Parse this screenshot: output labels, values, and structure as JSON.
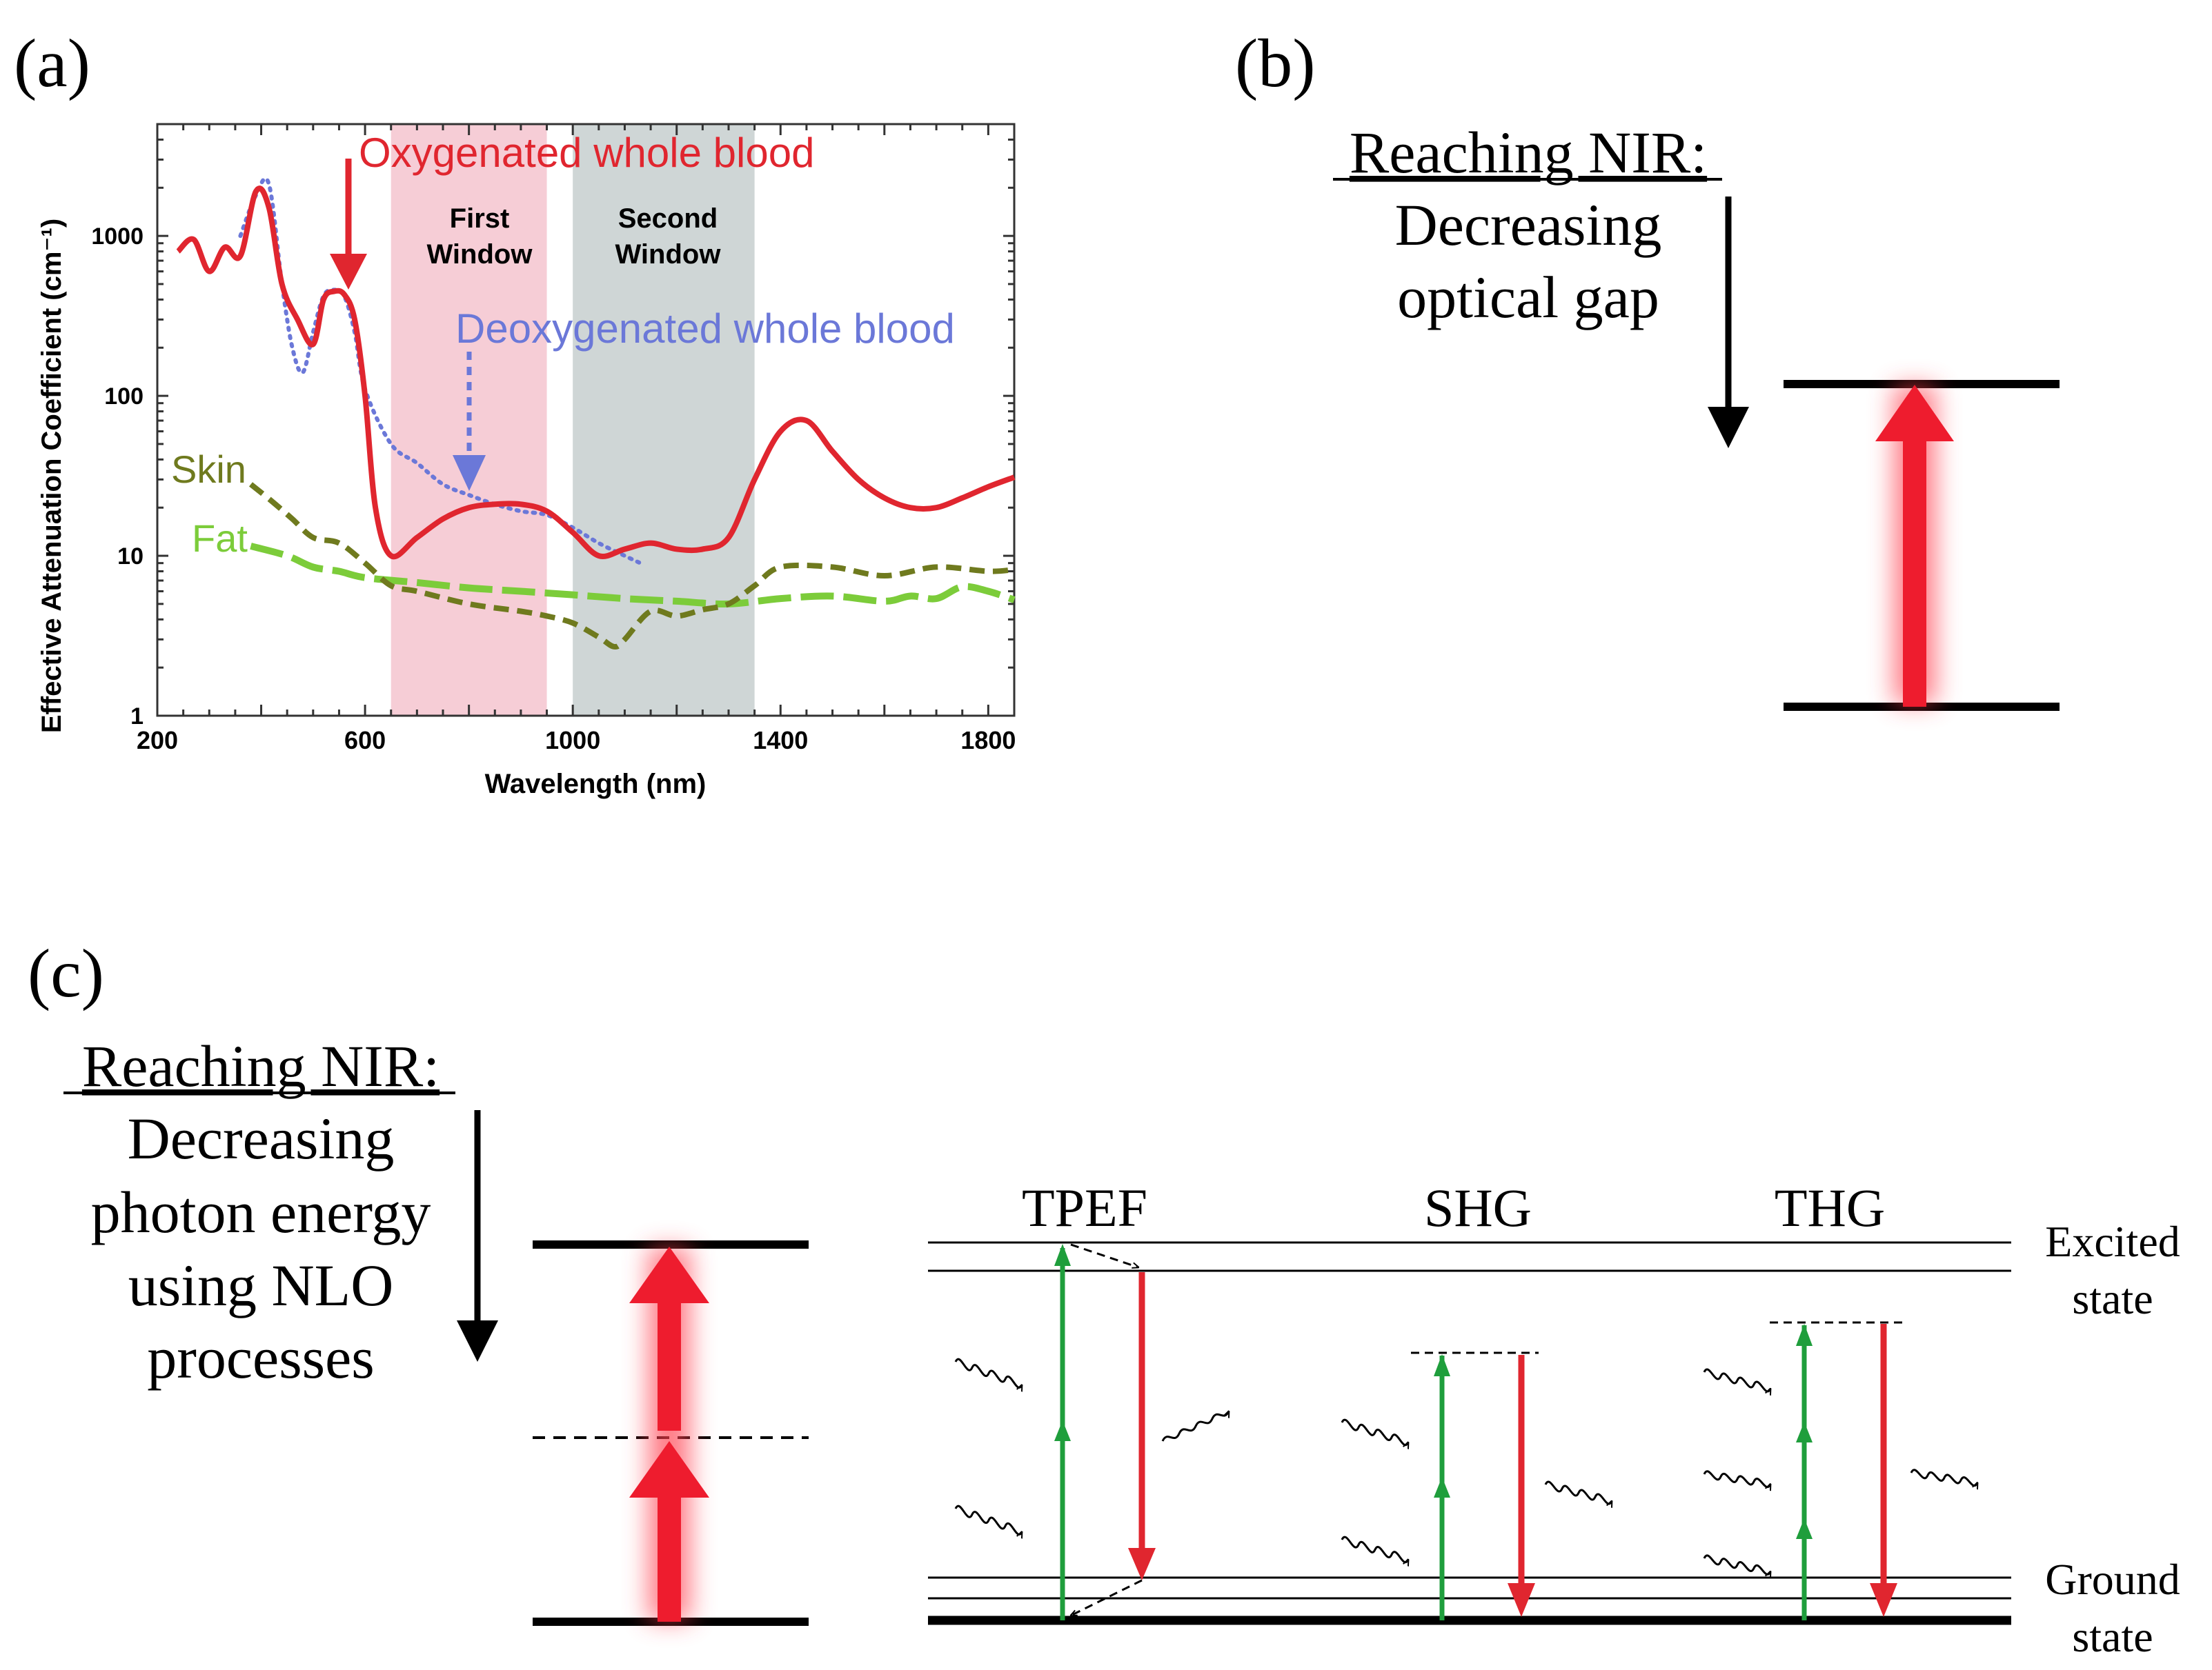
{
  "panels": {
    "a": "(a)",
    "b": "(b)",
    "c": "(c)"
  },
  "panel_a": {
    "ylabel": "Effective Attenuation Coefficient (cm⁻¹)",
    "xlabel": "Wavelength (nm)",
    "first_window": [
      "First",
      "Window"
    ],
    "second_window": [
      "Second",
      "Window"
    ],
    "label_oxy": "Oxygenated whole blood",
    "label_deoxy": "Deoxygenated whole blood",
    "label_skin": "Skin",
    "label_fat": "Fat",
    "colors": {
      "oxy": "#e0262f",
      "deoxy": "#6b78d8",
      "skin": "#6f7a1e",
      "fat": "#7ccc3a",
      "first_window": "#f6cdd6",
      "second_window": "#cfd6d6"
    }
  },
  "chart_data": {
    "type": "line",
    "title": "",
    "xlabel": "Wavelength (nm)",
    "ylabel": "Effective Attenuation Coefficient (cm⁻¹)",
    "xlim": [
      200,
      1850
    ],
    "ylim": [
      1,
      5000
    ],
    "yscale": "log",
    "xticks": [
      200,
      600,
      1000,
      1400,
      1800
    ],
    "yticks": [
      1,
      10,
      100,
      1000
    ],
    "bands": [
      {
        "name": "First Window",
        "from": 650,
        "to": 950
      },
      {
        "name": "Second Window",
        "from": 1000,
        "to": 1350
      }
    ],
    "series": [
      {
        "name": "Oxygenated whole blood",
        "style": "solid",
        "x": [
          240,
          270,
          300,
          330,
          360,
          390,
          415,
          440,
          470,
          500,
          520,
          540,
          560,
          580,
          600,
          620,
          650,
          700,
          750,
          800,
          850,
          900,
          950,
          1000,
          1050,
          1100,
          1150,
          1200,
          1250,
          1300,
          1350,
          1400,
          1450,
          1500,
          1550,
          1600,
          1650,
          1700,
          1750,
          1800,
          1850
        ],
        "y": [
          800,
          950,
          600,
          850,
          750,
          1900,
          1500,
          500,
          300,
          210,
          400,
          450,
          430,
          300,
          100,
          20,
          10,
          13,
          17,
          20,
          21,
          21,
          19,
          14,
          10,
          11,
          12,
          11,
          11,
          13,
          30,
          60,
          70,
          45,
          30,
          23,
          20,
          20,
          23,
          27,
          31
        ]
      },
      {
        "name": "Deoxygenated whole blood",
        "style": "dotted",
        "x": [
          360,
          390,
          415,
          440,
          460,
          480,
          500,
          520,
          540,
          560,
          580,
          600,
          650,
          700,
          750,
          800,
          850,
          900,
          950,
          1000,
          1050,
          1100,
          1130
        ],
        "y": [
          1000,
          1800,
          2100,
          500,
          200,
          140,
          250,
          420,
          460,
          420,
          250,
          110,
          50,
          38,
          28,
          24,
          21,
          19,
          18,
          15,
          12,
          10,
          9
        ]
      },
      {
        "name": "Skin",
        "style": "dashed",
        "x": [
          380,
          420,
          460,
          500,
          550,
          600,
          650,
          700,
          800,
          900,
          950,
          1000,
          1050,
          1080,
          1100,
          1150,
          1200,
          1250,
          1300,
          1350,
          1400,
          1500,
          1600,
          1700,
          1800,
          1850
        ],
        "y": [
          28,
          22,
          17,
          13,
          12,
          9,
          6.5,
          6,
          5,
          4.5,
          4.2,
          3.8,
          3.1,
          2.7,
          3,
          4.5,
          4.2,
          4.6,
          5,
          6.5,
          8.5,
          8.5,
          7.5,
          8.5,
          8,
          8.2
        ]
      },
      {
        "name": "Fat",
        "style": "long-dashed",
        "x": [
          380,
          450,
          500,
          550,
          600,
          700,
          800,
          900,
          1000,
          1100,
          1200,
          1300,
          1400,
          1500,
          1600,
          1650,
          1700,
          1750,
          1800,
          1850
        ],
        "y": [
          11.5,
          10,
          8.5,
          8,
          7.3,
          6.8,
          6.3,
          6,
          5.7,
          5.4,
          5.2,
          5,
          5.4,
          5.6,
          5.2,
          5.6,
          5.4,
          6.4,
          6,
          5.3
        ]
      }
    ]
  },
  "panel_b": {
    "heading": "Reaching NIR:",
    "line1": "Decreasing",
    "line2": "optical gap"
  },
  "panel_c": {
    "heading": "Reaching NIR:",
    "lines": [
      "Decreasing",
      "photon energy",
      "using NLO",
      "processes"
    ],
    "tpef": "TPEF",
    "shg": "SHG",
    "thg": "THG",
    "excited": [
      "Excited",
      "state"
    ],
    "ground": [
      "Ground",
      "state"
    ],
    "colors": {
      "excitation": "#1f9e3c",
      "emission": "#e0262f"
    }
  }
}
